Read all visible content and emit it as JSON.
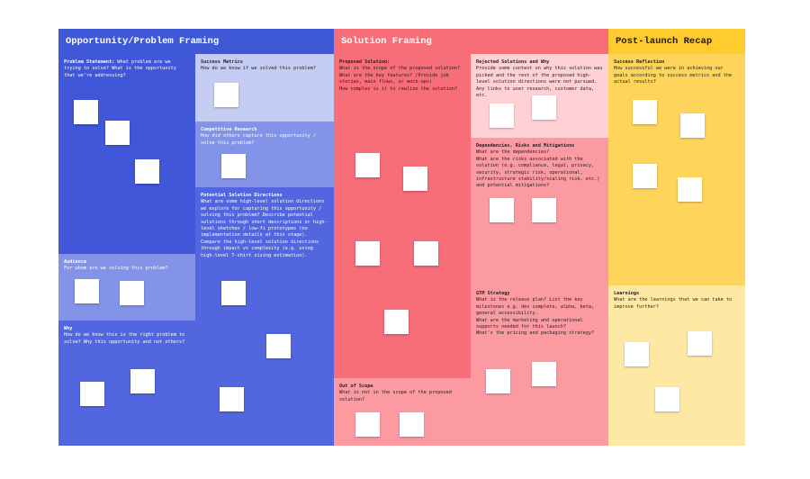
{
  "board": {
    "columns": [
      {
        "title": "Opportunity/Problem Framing",
        "color": "#3e58d8"
      },
      {
        "title": "Solution Framing",
        "color": "#f76d78"
      },
      {
        "title": "Post-launch Recap",
        "color": "#fecc2f"
      }
    ],
    "sections": {
      "problem_statement": {
        "title": "Problem Statement:",
        "desc": "What problem are we trying to solve? What is the opportunity that we're addressing?"
      },
      "audience": {
        "title": "Audience",
        "desc": "For whom are we solving this problem?"
      },
      "why": {
        "title": "Why",
        "desc": "How do we know this is the right problem to solve? Why this opportunity and not others?"
      },
      "success_metrics": {
        "title": "Success Metrics",
        "desc": "How do we know if we solved this problem?"
      },
      "competitive_research": {
        "title": "Competitive Research",
        "desc": "How did others capture this opportunity / solve this problem?"
      },
      "potential_solutions": {
        "title": "Potential Solution Directions",
        "desc": "What are some high-level solution directions we explore for capturing this opportunity / solving this problem? Describe potential solutions through short descriptions or high-level sketches / low-fi prototypes (no implementation details at this stage). Compare the high-level solution directions through impact vs complexity (e.g. using high-level T-shirt sizing estimation)."
      },
      "proposed_solution": {
        "title": "Proposed Solution:",
        "desc": "What is the scope of the proposed solution?\nWhat are the key features? (Provide job stories, main flows, or mock-ups)\nHow complex is it to realize the solution?"
      },
      "out_of_scope": {
        "title": "Out of Scope",
        "desc": "What is not in the scope of the proposed solution?"
      },
      "rejected_solutions": {
        "title": "Rejected Solutions and Why",
        "desc": "Provide some context on why this solution was picked and the rest of the proposed high-level solution directions were not pursued. Any links to user research, customer data, etc."
      },
      "dependencies": {
        "title": "Dependencies, Risks and Mitigations",
        "desc": "What are the dependencies?\nWhat are the risks associated with the solution (e.g. compliance, legal, privacy, security, strategic risk, operational, infrastructure stability/scaling risk, etc.) and potential mitigations?"
      },
      "gtm": {
        "title": "GTM Strategy",
        "desc": "What is the release plan? List the key milestones e.g. dev complete, alpha, beta, general accessibility.\nWhat are the marketing and operational supports needed for this launch?\nWhat's the pricing and packaging strategy?"
      },
      "success_reflection": {
        "title": "Success Reflection",
        "desc": "How successful we were in achieving our goals according to success metrics and the actual results?"
      },
      "learnings": {
        "title": "Learnings",
        "desc": "What are the learnings that we can take to improve further?"
      }
    },
    "colors": {
      "blue_dark": "#4157d9",
      "blue_mid": "#5267df",
      "blue_light": "#8394e8",
      "blue_pale": "#c5ccf4",
      "red_dark": "#f76d78",
      "red_mid": "#fc9aa1",
      "red_light": "#ffd0d4",
      "yellow_dark": "#fed55a",
      "yellow_light": "#ffe8a3",
      "note": "#ffffff"
    }
  }
}
